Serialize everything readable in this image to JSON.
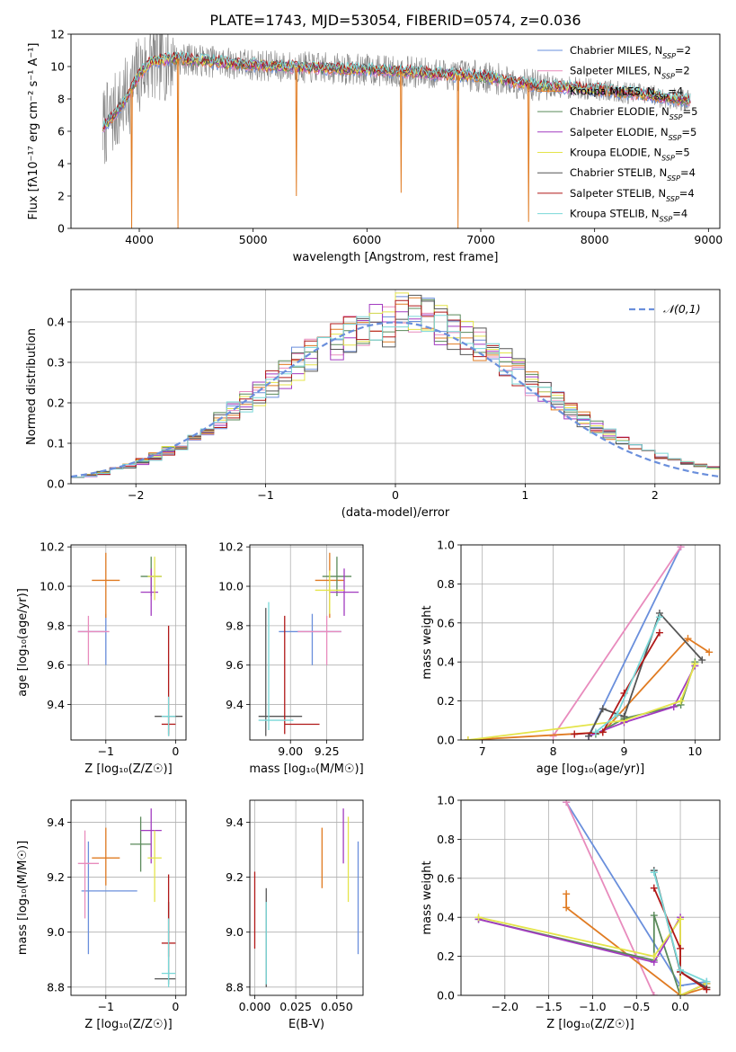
{
  "page_title": "PLATE=1743, MJD=53054, FIBERID=0574, z=0.036",
  "colors": {
    "Chabrier MILES": "#6a8fdc",
    "Salpeter MILES": "#e88bbd",
    "Kroupa MILES": "#e07b22",
    "Chabrier ELODIE": "#5a8a5a",
    "Salpeter ELODIE": "#a23bc0",
    "Kroupa ELODIE": "#e4e44a",
    "Chabrier STELIB": "#555555",
    "Salpeter STELIB": "#b01818",
    "Kroupa STELIB": "#7ad8d8"
  },
  "chart_data": [
    {
      "id": "spectrum",
      "type": "line",
      "title": "PLATE=1743, MJD=53054, FIBERID=0574, z=0.036",
      "xlabel": "wavelength [Angstrom, rest frame]",
      "ylabel": "Flux [fλ10⁻¹⁷ erg cm⁻² s⁻¹ A⁻¹]",
      "xlim": [
        3400,
        9100
      ],
      "ylim": [
        0,
        12
      ],
      "xticks": [
        4000,
        5000,
        6000,
        7000,
        8000,
        9000
      ],
      "yticks": [
        0,
        2,
        4,
        6,
        8,
        10,
        12
      ],
      "legend_position": "top-right",
      "legend": [
        {
          "name": "Chabrier MILES",
          "nssp": "2"
        },
        {
          "name": "Salpeter MILES",
          "nssp": "2"
        },
        {
          "name": "Kroupa MILES",
          "nssp": "4"
        },
        {
          "name": "Chabrier ELODIE",
          "nssp": "5"
        },
        {
          "name": "Salpeter ELODIE",
          "nssp": "5"
        },
        {
          "name": "Kroupa ELODIE",
          "nssp": "5"
        },
        {
          "name": "Chabrier STELIB",
          "nssp": "4"
        },
        {
          "name": "Salpeter STELIB",
          "nssp": "4"
        },
        {
          "name": "Kroupa STELIB",
          "nssp": "4"
        }
      ],
      "continuum": {
        "x": [
          3680,
          3800,
          3900,
          4000,
          4100,
          4300,
          4500,
          4800,
          5200,
          5600,
          6000,
          6500,
          7000,
          7500,
          8000,
          8400,
          8800
        ],
        "y": [
          6.2,
          7.2,
          8.2,
          9.5,
          10.3,
          10.5,
          10.4,
          10.2,
          10.0,
          9.9,
          9.8,
          9.6,
          9.4,
          8.8,
          8.6,
          8.3,
          7.9
        ]
      },
      "dips": [
        {
          "x": 3933,
          "y": 0
        },
        {
          "x": 4340,
          "y": 0
        },
        {
          "x": 5380,
          "y": 2.0
        },
        {
          "x": 6300,
          "y": 2.2
        },
        {
          "x": 6800,
          "y": 0
        },
        {
          "x": 7420,
          "y": 0.4
        }
      ]
    },
    {
      "id": "residuals",
      "type": "step-histogram",
      "xlabel": "(data-model)/error",
      "ylabel": "Normed distribution",
      "xlim": [
        -2.5,
        2.5
      ],
      "ylim": [
        0,
        0.48
      ],
      "xticks": [
        -2,
        -1,
        0,
        1,
        2
      ],
      "xticklabels": [
        "−2",
        "−1",
        "0",
        "1",
        "2"
      ],
      "yticks": [
        0,
        0.1,
        0.2,
        0.3,
        0.4
      ],
      "yticklabels": [
        "0.0",
        "0.1",
        "0.2",
        "0.3",
        "0.4"
      ],
      "grid": true,
      "legend_position": "top-right",
      "reference_curve": {
        "label": "𝒩(0,1)",
        "color": "#6a8fdc",
        "style": "dashed"
      },
      "bin_width": 0.1,
      "bin_start": -2.5
    },
    {
      "id": "age_vs_Z",
      "type": "errorbar",
      "xlabel": "Z [log₁₀(Z/Z☉)]",
      "ylabel": "age  [log₁₀(age/yr)]",
      "xlim": [
        -1.5,
        0.15
      ],
      "ylim": [
        9.22,
        10.21
      ],
      "xticks": [
        -1,
        0
      ],
      "xticklabels": [
        "−1",
        "0"
      ],
      "yticks": [
        9.4,
        9.6,
        9.8,
        10.0,
        10.2
      ],
      "yticklabels": [
        "9.4",
        "9.6",
        "9.8",
        "10.0",
        "10.2"
      ],
      "points": [
        {
          "series": "Chabrier MILES",
          "x": -1.0,
          "xerr": [
            0.4,
            0.0
          ],
          "y": 9.77,
          "yerr": [
            0.17,
            0.09
          ]
        },
        {
          "series": "Salpeter MILES",
          "x": -1.25,
          "xerr": [
            0.15,
            0.3
          ],
          "y": 9.77,
          "yerr": [
            0.17,
            0.08
          ]
        },
        {
          "series": "Kroupa MILES",
          "x": -1.0,
          "xerr": [
            0.2,
            0.2
          ],
          "y": 10.03,
          "yerr": [
            0.19,
            0.14
          ]
        },
        {
          "series": "Chabrier ELODIE",
          "x": -0.35,
          "xerr": [
            0.15,
            0.15
          ],
          "y": 10.05,
          "yerr": [
            0.1,
            0.1
          ]
        },
        {
          "series": "Salpeter ELODIE",
          "x": -0.35,
          "xerr": [
            0.15,
            0.1
          ],
          "y": 9.97,
          "yerr": [
            0.12,
            0.12
          ]
        },
        {
          "series": "Kroupa ELODIE",
          "x": -0.3,
          "xerr": [
            0.1,
            0.1
          ],
          "y": 10.05,
          "yerr": [
            0.12,
            0.1
          ]
        },
        {
          "series": "Chabrier STELIB",
          "x": -0.1,
          "xerr": [
            0.2,
            0.2
          ],
          "y": 9.34,
          "yerr": [
            0.1,
            0.0
          ]
        },
        {
          "series": "Salpeter STELIB",
          "x": -0.1,
          "xerr": [
            0.1,
            0.1
          ],
          "y": 9.3,
          "yerr": [
            0.05,
            0.5
          ]
        },
        {
          "series": "Kroupa STELIB",
          "x": -0.1,
          "xerr": [
            0.1,
            0.1
          ],
          "y": 9.34,
          "yerr": [
            0.1,
            0.1
          ]
        }
      ]
    },
    {
      "id": "age_vs_mass",
      "type": "errorbar",
      "xlabel": "mass [log₁₀(M/M☉)]",
      "ylabel": "",
      "xlim": [
        8.72,
        9.5
      ],
      "ylim": [
        9.22,
        10.21
      ],
      "xticks": [
        9.0,
        9.25
      ],
      "xticklabels": [
        "9.00",
        "9.25"
      ],
      "yticks": [
        9.4,
        9.6,
        9.8,
        10.0,
        10.2
      ],
      "yticklabels": [
        "9.4",
        "9.6",
        "9.8",
        "10.0",
        "10.2"
      ],
      "points": [
        {
          "series": "Chabrier MILES",
          "x": 9.15,
          "xerr": [
            0.23,
            0.2
          ],
          "y": 9.77,
          "yerr": [
            0.17,
            0.09
          ]
        },
        {
          "series": "Salpeter MILES",
          "x": 9.25,
          "xerr": [
            0.2,
            0.1
          ],
          "y": 9.77,
          "yerr": [
            0.17,
            0.08
          ]
        },
        {
          "series": "Kroupa MILES",
          "x": 9.27,
          "xerr": [
            0.1,
            0.1
          ],
          "y": 10.03,
          "yerr": [
            0.19,
            0.14
          ]
        },
        {
          "series": "Chabrier ELODIE",
          "x": 9.32,
          "xerr": [
            0.1,
            0.1
          ],
          "y": 10.05,
          "yerr": [
            0.1,
            0.1
          ]
        },
        {
          "series": "Salpeter ELODIE",
          "x": 9.37,
          "xerr": [
            0.1,
            0.1
          ],
          "y": 9.97,
          "yerr": [
            0.12,
            0.12
          ]
        },
        {
          "series": "Kroupa ELODIE",
          "x": 9.27,
          "xerr": [
            0.1,
            0.1
          ],
          "y": 9.98,
          "yerr": [
            0.12,
            0.1
          ]
        },
        {
          "series": "Chabrier STELIB",
          "x": 8.83,
          "xerr": [
            0.05,
            0.25
          ],
          "y": 9.34,
          "yerr": [
            0.1,
            0.55
          ]
        },
        {
          "series": "Salpeter STELIB",
          "x": 8.96,
          "xerr": [
            0.0,
            0.24
          ],
          "y": 9.3,
          "yerr": [
            0.05,
            0.55
          ]
        },
        {
          "series": "Kroupa STELIB",
          "x": 8.85,
          "xerr": [
            0.07,
            0.17
          ],
          "y": 9.32,
          "yerr": [
            0.05,
            0.6
          ]
        }
      ]
    },
    {
      "id": "mass_weight_vs_age",
      "type": "line",
      "xlabel": "age  [log₁₀(age/yr)]",
      "ylabel": "mass weight",
      "xlim": [
        6.7,
        10.35
      ],
      "ylim": [
        0,
        1.0
      ],
      "xticks": [
        7,
        8,
        9,
        10
      ],
      "xticklabels": [
        "7",
        "8",
        "9",
        "10"
      ],
      "yticks": [
        0,
        0.2,
        0.4,
        0.6,
        0.8,
        1.0
      ],
      "yticklabels": [
        "0.0",
        "0.2",
        "0.4",
        "0.6",
        "0.8",
        "1.0"
      ],
      "grid": true,
      "series": [
        {
          "name": "Chabrier MILES",
          "x": [
            8.5,
            9.8
          ],
          "y": [
            0.02,
            0.99
          ]
        },
        {
          "name": "Salpeter MILES",
          "x": [
            8.0,
            9.8
          ],
          "y": [
            0.02,
            0.99
          ]
        },
        {
          "name": "Kroupa MILES",
          "x": [
            6.8,
            8.7,
            9.9,
            10.2
          ],
          "y": [
            0.0,
            0.04,
            0.52,
            0.45
          ]
        },
        {
          "name": "Chabrier ELODIE",
          "x": [
            8.6,
            9.0,
            9.8,
            10.0
          ],
          "y": [
            0.03,
            0.11,
            0.18,
            0.4
          ]
        },
        {
          "name": "Salpeter ELODIE",
          "x": [
            8.5,
            9.0,
            9.7,
            10.0
          ],
          "y": [
            0.02,
            0.09,
            0.17,
            0.38
          ]
        },
        {
          "name": "Kroupa ELODIE",
          "x": [
            6.8,
            9.0,
            9.8,
            10.0
          ],
          "y": [
            0.0,
            0.1,
            0.2,
            0.39
          ]
        },
        {
          "name": "Chabrier STELIB",
          "x": [
            8.5,
            8.7,
            9.0,
            9.5,
            10.1
          ],
          "y": [
            0.02,
            0.16,
            0.12,
            0.65,
            0.41
          ]
        },
        {
          "name": "Salpeter STELIB",
          "x": [
            8.3,
            8.7,
            9.0,
            9.5
          ],
          "y": [
            0.03,
            0.04,
            0.24,
            0.55
          ]
        },
        {
          "name": "Kroupa STELIB",
          "x": [
            8.6,
            8.9,
            9.5
          ],
          "y": [
            0.04,
            0.13,
            0.63
          ]
        }
      ]
    },
    {
      "id": "mass_vs_Z",
      "type": "errorbar",
      "xlabel": "Z [log₁₀(Z/Z☉)]",
      "ylabel": "mass [log₁₀(M/M☉)]",
      "xlim": [
        -1.5,
        0.15
      ],
      "ylim": [
        8.77,
        9.48
      ],
      "xticks": [
        -1,
        0
      ],
      "xticklabels": [
        "−1",
        "0"
      ],
      "yticks": [
        8.8,
        9.0,
        9.2,
        9.4
      ],
      "yticklabels": [
        "8.8",
        "9.0",
        "9.2",
        "9.4"
      ],
      "points": [
        {
          "series": "Chabrier MILES",
          "x": -1.25,
          "xerr": [
            0.1,
            0.7
          ],
          "y": 9.15,
          "yerr": [
            0.23,
            0.18
          ]
        },
        {
          "series": "Salpeter MILES",
          "x": -1.3,
          "xerr": [
            0.1,
            0.2
          ],
          "y": 9.25,
          "yerr": [
            0.2,
            0.12
          ]
        },
        {
          "series": "Kroupa MILES",
          "x": -1.0,
          "xerr": [
            0.2,
            0.2
          ],
          "y": 9.27,
          "yerr": [
            0.1,
            0.11
          ]
        },
        {
          "series": "Chabrier ELODIE",
          "x": -0.5,
          "xerr": [
            0.15,
            0.15
          ],
          "y": 9.32,
          "yerr": [
            0.1,
            0.1
          ]
        },
        {
          "series": "Salpeter ELODIE",
          "x": -0.35,
          "xerr": [
            0.15,
            0.15
          ],
          "y": 9.37,
          "yerr": [
            0.12,
            0.08
          ]
        },
        {
          "series": "Kroupa ELODIE",
          "x": -0.3,
          "xerr": [
            0.1,
            0.1
          ],
          "y": 9.27,
          "yerr": [
            0.16,
            0.1
          ]
        },
        {
          "series": "Chabrier STELIB",
          "x": -0.1,
          "xerr": [
            0.2,
            0.1
          ],
          "y": 8.83,
          "yerr": [
            0.02,
            0.28
          ]
        },
        {
          "series": "Salpeter STELIB",
          "x": -0.1,
          "xerr": [
            0.1,
            0.1
          ],
          "y": 8.96,
          "yerr": [
            0.05,
            0.25
          ]
        },
        {
          "series": "Kroupa STELIB",
          "x": -0.1,
          "xerr": [
            0.1,
            0.1
          ],
          "y": 8.85,
          "yerr": [
            0.05,
            0.2
          ]
        }
      ]
    },
    {
      "id": "mass_vs_EBV",
      "type": "errorbar",
      "xlabel": "E(B-V)",
      "ylabel": "",
      "xlim": [
        -0.003,
        0.066
      ],
      "ylim": [
        8.77,
        9.48
      ],
      "xticks": [
        0.0,
        0.025,
        0.05
      ],
      "xticklabels": [
        "0.000",
        "0.025",
        "0.050"
      ],
      "yticks": [
        8.8,
        9.0,
        9.2,
        9.4
      ],
      "yticklabels": [
        "8.8",
        "9.0",
        "9.2",
        "9.4"
      ],
      "points": [
        {
          "series": "Chabrier MILES",
          "x": 0.063,
          "y": 9.15,
          "yerr": [
            0.23,
            0.18
          ]
        },
        {
          "series": "Kroupa MILES",
          "x": 0.041,
          "y": 9.27,
          "yerr": [
            0.11,
            0.11
          ]
        },
        {
          "series": "Salpeter ELODIE",
          "x": 0.054,
          "y": 9.37,
          "yerr": [
            0.12,
            0.08
          ]
        },
        {
          "series": "Kroupa ELODIE",
          "x": 0.057,
          "y": 9.27,
          "yerr": [
            0.16,
            0.15
          ]
        },
        {
          "series": "Chabrier STELIB",
          "x": 0.007,
          "y": 9.05,
          "yerr": [
            0.25,
            0.11
          ]
        },
        {
          "series": "Salpeter STELIB",
          "x": 0.0,
          "y": 9.08,
          "yerr": [
            0.14,
            0.14
          ]
        },
        {
          "series": "Kroupa STELIB",
          "x": 0.007,
          "y": 8.95,
          "yerr": [
            0.14,
            0.16
          ]
        }
      ]
    },
    {
      "id": "mass_weight_vs_Z",
      "type": "line",
      "xlabel": "Z [log₁₀(Z/Z☉)]",
      "ylabel": "mass weight",
      "xlim": [
        -2.5,
        0.45
      ],
      "ylim": [
        0,
        1.0
      ],
      "xticks": [
        -2.0,
        -1.5,
        -1.0,
        -0.5,
        0.0
      ],
      "xticklabels": [
        "−2.0",
        "−1.5",
        "−1.0",
        "−0.5",
        "0.0"
      ],
      "yticks": [
        0,
        0.2,
        0.4,
        0.6,
        0.8,
        1.0
      ],
      "yticklabels": [
        "0.0",
        "0.2",
        "0.4",
        "0.6",
        "0.8",
        "1.0"
      ],
      "grid": true,
      "series": [
        {
          "name": "Chabrier MILES",
          "x": [
            -1.3,
            0.0,
            0.3
          ],
          "y": [
            0.99,
            0.05,
            0.07
          ]
        },
        {
          "name": "Salpeter MILES",
          "x": [
            -1.3,
            -0.3
          ],
          "y": [
            0.99,
            0.0
          ]
        },
        {
          "name": "Kroupa MILES",
          "x": [
            -1.3,
            -1.3,
            0.0,
            0.3
          ],
          "y": [
            0.52,
            0.45,
            0.0,
            0.04
          ]
        },
        {
          "name": "Chabrier ELODIE",
          "x": [
            -2.3,
            -0.3,
            -0.3,
            0.0,
            0.3
          ],
          "y": [
            0.39,
            0.18,
            0.41,
            0.0,
            0.06
          ]
        },
        {
          "name": "Salpeter ELODIE",
          "x": [
            -2.3,
            -0.3,
            0.0,
            0.0,
            0.3
          ],
          "y": [
            0.39,
            0.17,
            0.4,
            0.0,
            0.06
          ]
        },
        {
          "name": "Kroupa ELODIE",
          "x": [
            -2.3,
            -0.3,
            0.0,
            0.0,
            0.3
          ],
          "y": [
            0.4,
            0.2,
            0.39,
            0.0,
            0.06
          ]
        },
        {
          "name": "Chabrier STELIB",
          "x": [
            -0.3,
            0.0,
            0.3
          ],
          "y": [
            0.64,
            0.12,
            0.04
          ]
        },
        {
          "name": "Salpeter STELIB",
          "x": [
            -0.3,
            0.0,
            0.0,
            0.3
          ],
          "y": [
            0.55,
            0.24,
            0.12,
            0.03
          ]
        },
        {
          "name": "Kroupa STELIB",
          "x": [
            -0.3,
            0.0,
            0.3
          ],
          "y": [
            0.63,
            0.13,
            0.07
          ]
        }
      ]
    }
  ]
}
